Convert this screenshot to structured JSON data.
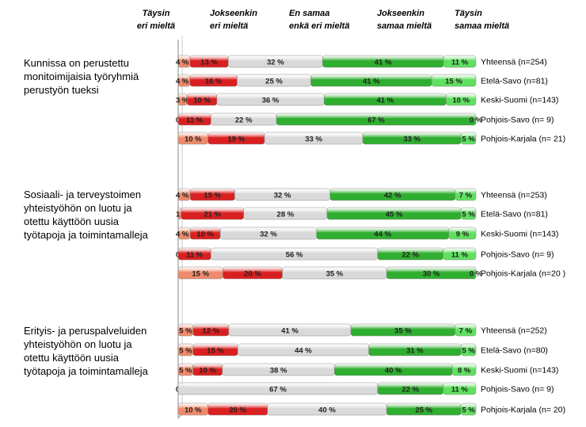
{
  "chart_data": {
    "type": "bar",
    "stacked": true,
    "orientation": "horizontal",
    "legend": [
      "Täysin eri mieltä",
      "Jokseenkin eri mieltä",
      "En samaa enkä eri mieltä",
      "Jokseenkin samaa mieltä",
      "Täysin samaa mieltä"
    ],
    "colors": [
      "#f08a6a",
      "#d92020",
      "#d9d9d9",
      "#2fae2f",
      "#5fe05f"
    ],
    "groups": [
      {
        "label": [
          "Kunnissa on perustettu",
          "monitoimijaisia työryhmiä",
          "perustyön tueksi"
        ],
        "rows": [
          {
            "name": "Yhteensä (n=254)",
            "values": [
              4,
              13,
              32,
              41,
              11
            ],
            "labels": [
              "4 %",
              "13 %",
              "32 %",
              "41 %",
              "11 %"
            ]
          },
          {
            "name": "Etelä-Savo (n=81)",
            "values": [
              4,
              16,
              25,
              41,
              15
            ],
            "labels": [
              "4 %",
              "16 %",
              "25 %",
              "41 %",
              "15 %"
            ]
          },
          {
            "name": "Keski-Suomi (n=143)",
            "values": [
              3,
              10,
              36,
              41,
              10
            ],
            "labels": [
              "3 %",
              "10 %",
              "36 %",
              "41 %",
              "10 %"
            ]
          },
          {
            "name": "Pohjois-Savo (n= 9)",
            "values": [
              0,
              11,
              22,
              67,
              0
            ],
            "labels": [
              "0 %",
              "11 %",
              "22 %",
              "67 %",
              "0 %"
            ]
          },
          {
            "name": "Pohjois-Karjala (n= 21)",
            "values": [
              10,
              19,
              33,
              33,
              5
            ],
            "labels": [
              "10 %",
              "19 %",
              "33 %",
              "33 %",
              "5 %"
            ]
          }
        ]
      },
      {
        "label": [
          "Sosiaali- ja terveystoimen",
          "yhteistyöhön on luotu ja",
          "otettu käyttöön uusia",
          "työtapoja ja toimintamalleja"
        ],
        "rows": [
          {
            "name": "Yhteensä (n=253)",
            "values": [
              4,
              15,
              32,
              42,
              7
            ],
            "labels": [
              "4 %",
              "15 %",
              "32 %",
              "42 %",
              "7 %"
            ]
          },
          {
            "name": "Etelä-Savo (n=81)",
            "values": [
              1,
              21,
              28,
              45,
              5
            ],
            "labels": [
              "1 %",
              "21 %",
              "28 %",
              "45 %",
              "5 %"
            ]
          },
          {
            "name": "Keski-Suomi (n=143)",
            "values": [
              4,
              10,
              32,
              44,
              9
            ],
            "labels": [
              "4 %",
              "10 %",
              "32 %",
              "44 %",
              "9 %"
            ]
          },
          {
            "name": "Pohjois-Savo (n= 9)",
            "values": [
              0,
              11,
              56,
              22,
              11
            ],
            "labels": [
              "0 %",
              "11 %",
              "56 %",
              "22 %",
              "11 %"
            ]
          },
          {
            "name": "Pohjois-Karjala (n=20 )",
            "values": [
              15,
              20,
              35,
              30,
              0
            ],
            "labels": [
              "15 %",
              "20 %",
              "35 %",
              "30 %",
              "0 %"
            ]
          }
        ]
      },
      {
        "label": [
          "Erityis- ja peruspalveluiden",
          "yhteistyöhön on luotu ja",
          "otettu käyttöön uusia",
          "työtapoja ja toimintamalleja"
        ],
        "rows": [
          {
            "name": "Yhteensä (n=252)",
            "values": [
              5,
              12,
              41,
              35,
              7
            ],
            "labels": [
              "5 %",
              "12 %",
              "41 %",
              "35 %",
              "7 %"
            ]
          },
          {
            "name": "Etelä-Savo (n=80)",
            "values": [
              5,
              15,
              44,
              31,
              5
            ],
            "labels": [
              "5 %",
              "15 %",
              "44 %",
              "31 %",
              "5 %"
            ]
          },
          {
            "name": "Keski-Suomi (n=143)",
            "values": [
              5,
              10,
              38,
              40,
              8
            ],
            "labels": [
              "5 %",
              "10 %",
              "38 %",
              "40 %",
              "8 %"
            ]
          },
          {
            "name": "Pohjois-Savo (n= 9)",
            "values": [
              0,
              0,
              67,
              22,
              11
            ],
            "labels": [
              "0 %",
              "",
              "67 %",
              "22 %",
              "11 %"
            ]
          },
          {
            "name": "Pohjois-Karjala (n= 20)",
            "values": [
              10,
              20,
              40,
              25,
              5
            ],
            "labels": [
              "10 %",
              "20 %",
              "40 %",
              "25 %",
              "5 %"
            ]
          }
        ]
      }
    ]
  }
}
